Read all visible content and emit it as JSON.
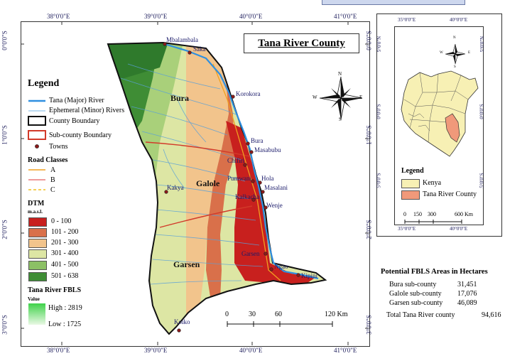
{
  "map": {
    "title": "Tana River County",
    "top_coords": [
      "38°0'0\"E",
      "39°0'0\"E",
      "40°0'0\"E",
      "41°0'0\"E"
    ],
    "bottom_coords": [
      "38°0'0\"E",
      "39°0'0\"E",
      "40°0'0\"E",
      "41°0'0\"E"
    ],
    "left_coords": [
      "0°0'0\"S",
      "1°0'0\"S",
      "2°0'0\"S",
      "3°0'0\"S"
    ],
    "right_coords": [
      "0°0'0\"S",
      "1°0'0\"S",
      "2°0'0\"S",
      "3°0'0\"S"
    ],
    "subcounties": [
      "Bura",
      "Galole",
      "Garsen"
    ],
    "towns": [
      "Mbalambala",
      "Saka",
      "Korokora",
      "Bura",
      "Masabubu",
      "Chifiri",
      "Pumwani",
      "Hola",
      "Masalani",
      "Kakya",
      "Kalkacha",
      "Wenje",
      "Garsen",
      "Kipini",
      "Ngao",
      "Koiko"
    ],
    "compass": {
      "n": "N",
      "s": "S",
      "e": "E",
      "w": "W"
    },
    "scale": [
      "0",
      "30",
      "60",
      "120 Km"
    ]
  },
  "legend": {
    "title": "Legend",
    "major_river": "Tana (Major) River",
    "minor_river": "Ephemeral (Minor) Rivers",
    "county_boundary": "County Boundary",
    "subcounty_boundary": "Sub-county Boundary",
    "towns": "Towns",
    "road_classes_title": "Road Classes",
    "road_a": "A",
    "road_b": "B",
    "road_c": "C",
    "dtm_title": "DTM",
    "dtm_unit": "m.a.s.l.",
    "dtm_classes": [
      "0 - 100",
      "101 - 200",
      "201 - 300",
      "301 - 400",
      "401 - 500",
      "501 - 638"
    ],
    "dtm_colors": [
      "#c8201e",
      "#d9704a",
      "#f2c48c",
      "#dde6a4",
      "#8cc065",
      "#3f8d35"
    ],
    "fbls_title": "Tana River FBLS",
    "fbls_value": "Value",
    "fbls_high": "High : 2819",
    "fbls_low": "Low : 1725"
  },
  "inset": {
    "top_coords": [
      "35°0'0\"E",
      "40°0'0\"E"
    ],
    "bottom_coords": [
      "35°0'0\"E",
      "40°0'0\"E"
    ],
    "left_coords": [
      "5°0'0\"N",
      "0°0'0\"S",
      "5°0'0\"S"
    ],
    "right_coords": [
      "5°0'0\"N",
      "0°0'0\"S",
      "5°0'0\"S"
    ],
    "legend_title": "Legend",
    "kenya": "Kenya",
    "tana": "Tana River County",
    "scale": [
      "0",
      "150",
      "300",
      "600 Km"
    ],
    "compass": {
      "n": "N",
      "s": "S",
      "e": "E",
      "w": "W"
    }
  },
  "stats": {
    "title": "Potential FBLS Areas in Hectares",
    "rows": [
      {
        "label": "Bura sub-county",
        "value": "31,451"
      },
      {
        "label": "Galole sub-county",
        "value": "17,076"
      },
      {
        "label": "Garsen sub-county",
        "value": "46,089"
      }
    ],
    "total_label": "Total Tana River county",
    "total_value": "94,616"
  }
}
